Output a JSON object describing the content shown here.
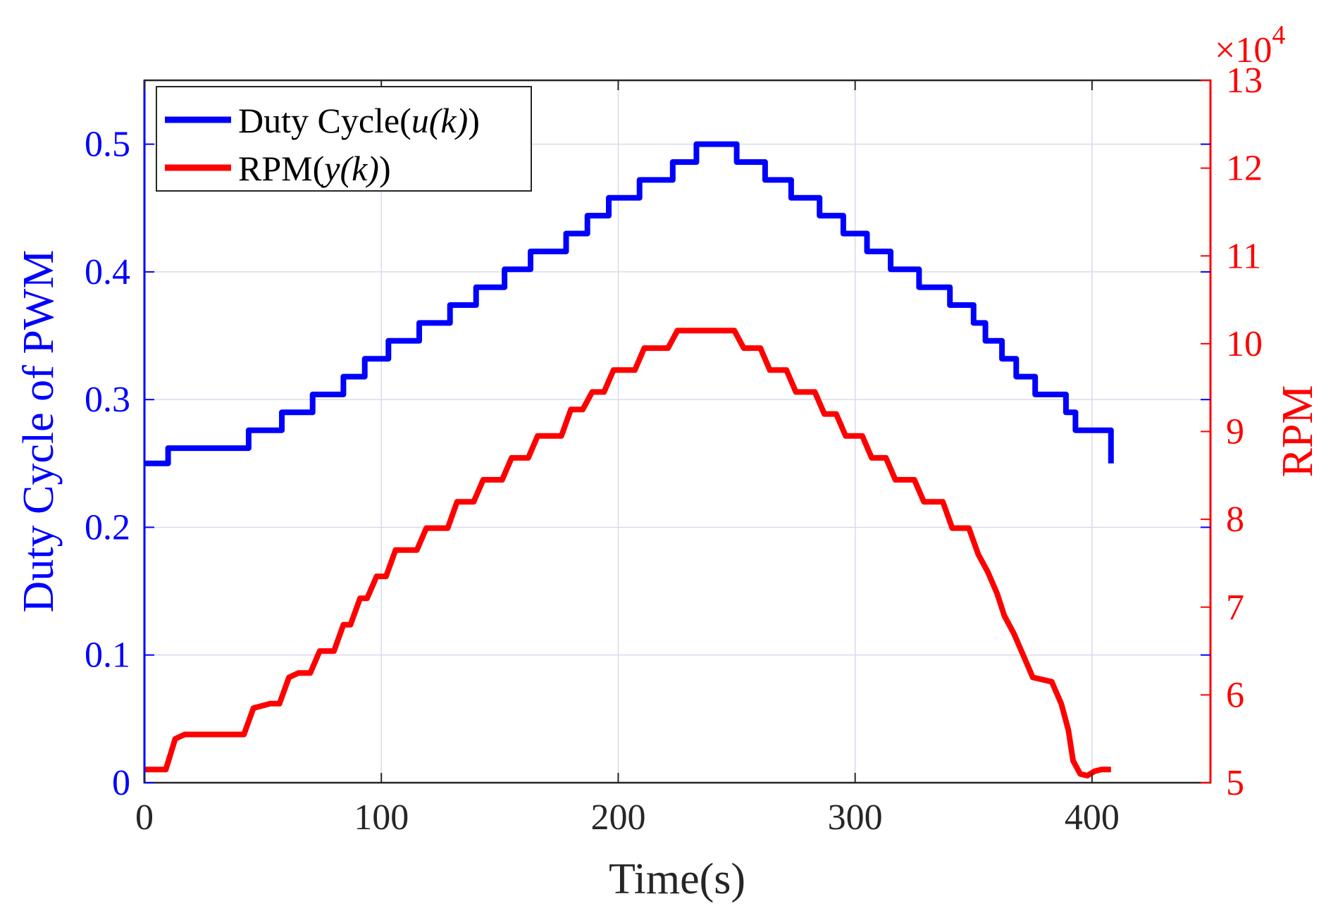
{
  "chart_data": {
    "type": "line",
    "xlabel": "Time(s)",
    "xlim": [
      0,
      450
    ],
    "x_ticks": [
      0,
      100,
      200,
      300,
      400
    ],
    "x_tick_labels": [
      "0",
      "100",
      "200",
      "300",
      "400"
    ],
    "y_left": {
      "label": "Duty Cycle of PWM",
      "lim": [
        0,
        0.55
      ],
      "ticks": [
        0,
        0.1,
        0.2,
        0.3,
        0.4,
        0.5
      ],
      "tick_labels": [
        "0",
        "0.1",
        "0.2",
        "0.3",
        "0.4",
        "0.5"
      ],
      "color": "#0000ff"
    },
    "y_right": {
      "label": "RPM",
      "lim": [
        50000,
        130000
      ],
      "ticks": [
        50000,
        60000,
        70000,
        80000,
        90000,
        100000,
        110000,
        120000,
        130000
      ],
      "tick_labels": [
        "5",
        "6",
        "7",
        "8",
        "9",
        "10",
        "11",
        "12",
        "13"
      ],
      "exponent_prefix": "×10",
      "exponent_power": "4",
      "color": "#ff0000"
    },
    "grid": true,
    "legend_position": "top-left",
    "series": [
      {
        "name": "Duty Cycle(u(k))",
        "label_prefix": "Duty Cycle(",
        "label_italic": "u(k)",
        "label_suffix": ")",
        "axis": "left",
        "color": "#0000ff",
        "step": true,
        "x": [
          0,
          10,
          44,
          58,
          71,
          84,
          93,
          103,
          116,
          129,
          140,
          152,
          163,
          178,
          187,
          196,
          209,
          223,
          233,
          250,
          262,
          273,
          285,
          295,
          305,
          315,
          327,
          340,
          350,
          355,
          362,
          368,
          376,
          389,
          393,
          408
        ],
        "y": [
          0.25,
          0.262,
          0.276,
          0.29,
          0.304,
          0.318,
          0.332,
          0.346,
          0.36,
          0.374,
          0.388,
          0.402,
          0.416,
          0.43,
          0.444,
          0.458,
          0.472,
          0.486,
          0.5,
          0.486,
          0.472,
          0.458,
          0.444,
          0.43,
          0.416,
          0.402,
          0.388,
          0.374,
          0.36,
          0.346,
          0.332,
          0.318,
          0.304,
          0.29,
          0.276,
          0.25
        ]
      },
      {
        "name": "RPM(y(k))",
        "label_prefix": "RPM(",
        "label_italic": "y(k)",
        "label_suffix": ")",
        "axis": "right",
        "color": "#ff0000",
        "step": false,
        "x": [
          0,
          9,
          13,
          17,
          42,
          46,
          53,
          57,
          61,
          65,
          70,
          74,
          80,
          84,
          87,
          91,
          94,
          98,
          102,
          106,
          115,
          119,
          128,
          132,
          139,
          143,
          151,
          155,
          162,
          166,
          176,
          180,
          185,
          189,
          194,
          198,
          207,
          211,
          221,
          225,
          232,
          236,
          249,
          253,
          260,
          264,
          271,
          275,
          283,
          287,
          292,
          296,
          303,
          307,
          313,
          317,
          325,
          329,
          337,
          341,
          348,
          352,
          356,
          360,
          363,
          367,
          371,
          375,
          383,
          387,
          390,
          392,
          395,
          398,
          401,
          404,
          408
        ],
        "y": [
          51500,
          51500,
          55000,
          55500,
          55500,
          58500,
          59000,
          59000,
          62000,
          62500,
          62500,
          65000,
          65000,
          68000,
          68000,
          71000,
          71000,
          73500,
          73500,
          76500,
          76500,
          79000,
          79000,
          82000,
          82000,
          84500,
          84500,
          87000,
          87000,
          89500,
          89500,
          92500,
          92500,
          94500,
          94500,
          97000,
          97000,
          99500,
          99500,
          101500,
          101500,
          101500,
          101500,
          99500,
          99500,
          97000,
          97000,
          94500,
          94500,
          92000,
          92000,
          89500,
          89500,
          87000,
          87000,
          84500,
          84500,
          82000,
          82000,
          79000,
          79000,
          76000,
          74000,
          71500,
          69000,
          67000,
          64500,
          62000,
          61500,
          59000,
          56000,
          52500,
          51000,
          50800,
          51300,
          51500,
          51500
        ]
      }
    ]
  }
}
